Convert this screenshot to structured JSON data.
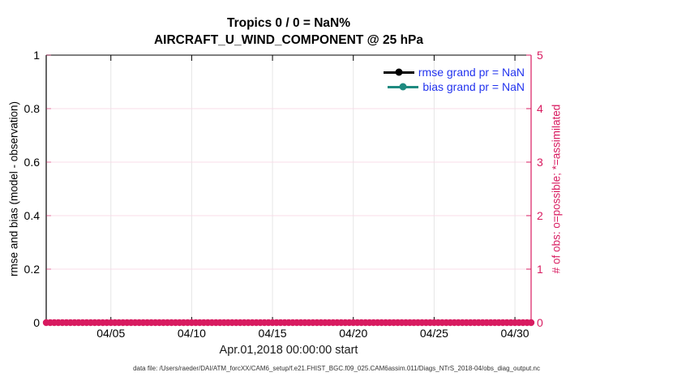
{
  "chart_data": {
    "type": "line",
    "title": "Tropics 0 / 0 = NaN%",
    "subtitle": "AIRCRAFT_U_WIND_COMPONENT @ 25 hPa",
    "x_axis": {
      "label": "Apr.01,2018 00:00:00 start",
      "range_days": [
        0,
        30
      ],
      "tick_positions_days": [
        4,
        9,
        14,
        19,
        24,
        29
      ],
      "tick_labels": [
        "04/05",
        "04/10",
        "04/15",
        "04/20",
        "04/25",
        "04/30"
      ]
    },
    "y_axis_left": {
      "label": "rmse and bias (model - observation)",
      "range": [
        0,
        1
      ],
      "ticks": [
        0,
        0.2,
        0.4,
        0.6,
        0.8,
        1
      ],
      "tick_labels": [
        "0",
        "0.2",
        "0.4",
        "0.6",
        "0.8",
        "1"
      ],
      "color": "#000000"
    },
    "y_axis_right": {
      "label": "# of obs: o=possible; *=assimilated",
      "range": [
        0,
        5
      ],
      "ticks": [
        0,
        1,
        2,
        3,
        4,
        5
      ],
      "tick_labels": [
        "0",
        "1",
        "2",
        "3",
        "4",
        "5"
      ],
      "color": "#d81b60"
    },
    "series": [
      {
        "name": "rmse grand pr = NaN",
        "type": "line",
        "color": "#000000",
        "marker": "circle",
        "values": "NaN",
        "plotted": false
      },
      {
        "name": "bias grand pr = NaN",
        "type": "line",
        "color": "#1e8a80",
        "marker": "circle",
        "values": "NaN",
        "plotted": false
      },
      {
        "name": "# of obs possible",
        "type": "scatter",
        "axis": "right",
        "color": "#d81b60",
        "marker": "o",
        "y_constant": 0,
        "bin_interval_hours": 6,
        "bin_count": 121
      },
      {
        "name": "# of obs assimilated",
        "type": "scatter",
        "axis": "right",
        "color": "#d81b60",
        "marker": "*",
        "y_constant": 0,
        "bin_interval_hours": 6,
        "bin_count": 121
      }
    ],
    "legend": {
      "position": "top-right",
      "border": false,
      "text_color": "#2233ee",
      "entries": [
        {
          "label": "rmse grand pr = NaN",
          "color": "#000000"
        },
        {
          "label": "bias grand pr = NaN",
          "color": "#1e8a80"
        }
      ]
    },
    "grid": {
      "visible": true,
      "vertical_color": "#e6e6e6",
      "horizontal_color": "#f8dce8"
    }
  },
  "footer": {
    "data_file_note": "data file: /Users/raeder/DAI/ATM_forcXX/CAM6_setup/f.e21.FHIST_BGC.f09_025.CAM6assim.011/Diags_NTrS_2018-04/obs_diag_output.nc"
  }
}
